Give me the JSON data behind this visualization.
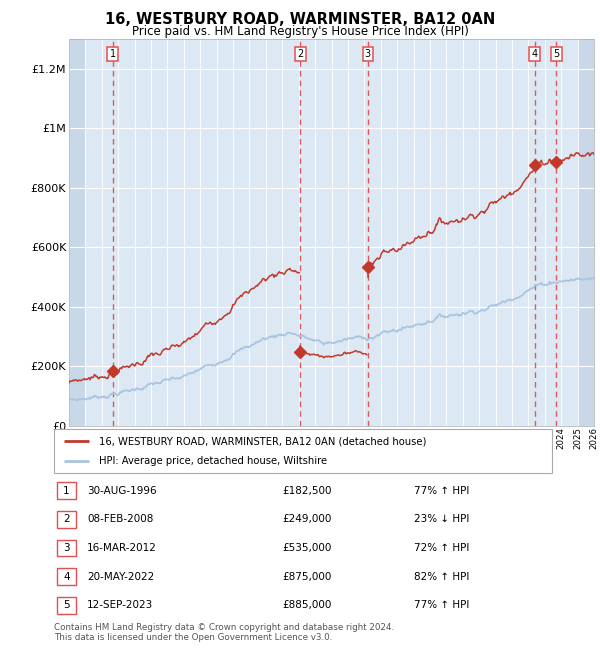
{
  "title": "16, WESTBURY ROAD, WARMINSTER, BA12 0AN",
  "subtitle": "Price paid vs. HM Land Registry's House Price Index (HPI)",
  "transactions": [
    {
      "num": 1,
      "date": "30-AUG-1996",
      "year": 1996.66,
      "price": 182500,
      "pct": "77%",
      "dir": "↑"
    },
    {
      "num": 2,
      "date": "08-FEB-2008",
      "year": 2008.1,
      "price": 249000,
      "pct": "23%",
      "dir": "↓"
    },
    {
      "num": 3,
      "date": "16-MAR-2012",
      "year": 2012.21,
      "price": 535000,
      "pct": "72%",
      "dir": "↑"
    },
    {
      "num": 4,
      "date": "20-MAY-2022",
      "year": 2022.38,
      "price": 875000,
      "pct": "82%",
      "dir": "↑"
    },
    {
      "num": 5,
      "date": "12-SEP-2023",
      "year": 2023.7,
      "price": 885000,
      "pct": "77%",
      "dir": "↑"
    }
  ],
  "hpi_line_color": "#aac4e0",
  "price_line_color": "#c0392b",
  "transaction_dot_color": "#c0392b",
  "dashed_line_color": "#e05050",
  "bg_color": "#dce9f5",
  "hatch_color": "#c8d8e8",
  "grid_color": "#ffffff",
  "ylim": [
    0,
    1300000
  ],
  "xlim_start": 1994,
  "xlim_end": 2026,
  "ytick_labels": [
    "£0",
    "£200K",
    "£400K",
    "£600K",
    "£800K",
    "£1M",
    "£1.2M"
  ],
  "ytick_values": [
    0,
    200000,
    400000,
    600000,
    800000,
    1000000,
    1200000
  ],
  "footer": "Contains HM Land Registry data © Crown copyright and database right 2024.\nThis data is licensed under the Open Government Licence v3.0.",
  "legend_line1": "16, WESTBURY ROAD, WARMINSTER, BA12 0AN (detached house)",
  "legend_line2": "HPI: Average price, detached house, Wiltshire"
}
